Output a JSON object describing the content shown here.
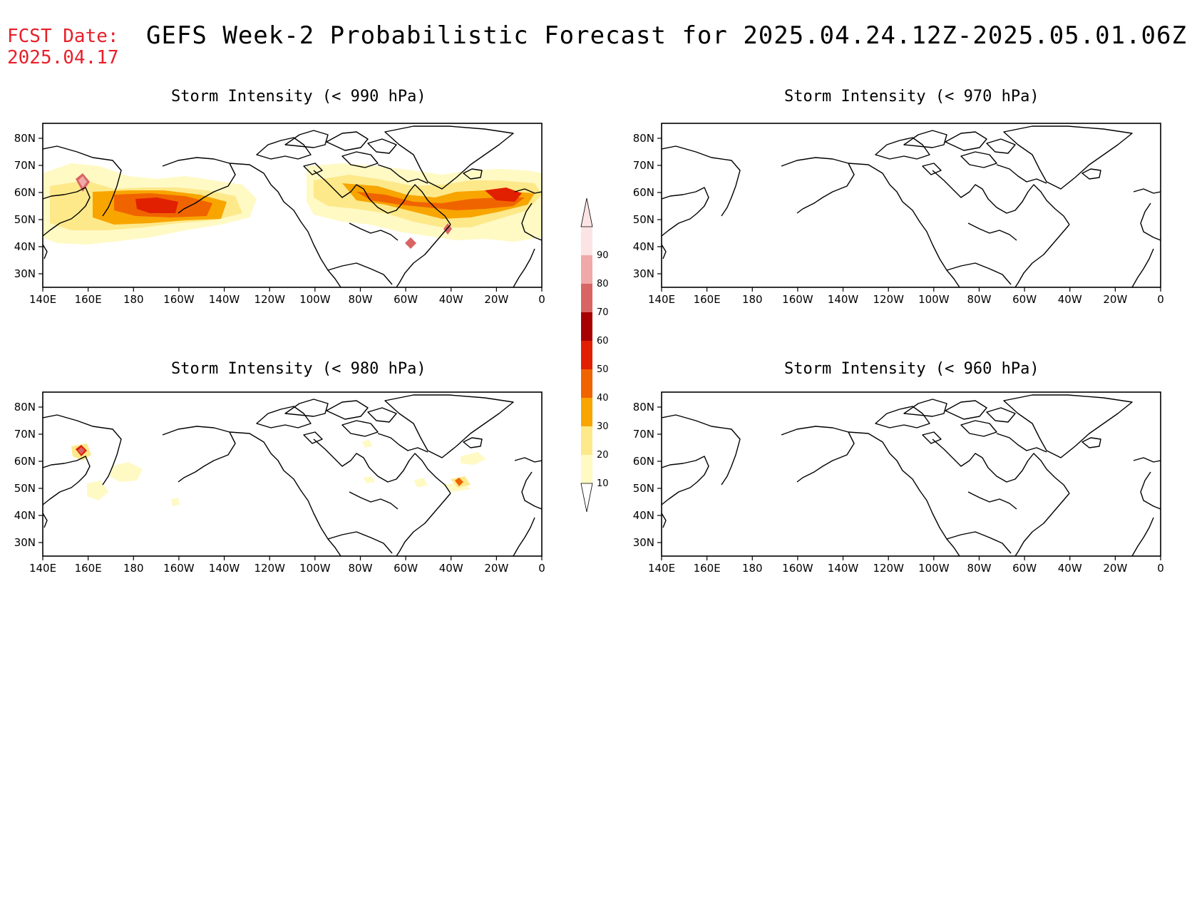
{
  "header": {
    "fcst_label": "FCST Date:",
    "fcst_date": "2025.04.17",
    "title": "GEFS Week-2 Probabilistic Forecast for 2025.04.24.12Z-2025.05.01.06Z"
  },
  "colors": {
    "fcst_text": "#e8202a",
    "scale": [
      "#fff9c4",
      "#fde98a",
      "#f8a500",
      "#f06400",
      "#e02000",
      "#a80000",
      "#d86464",
      "#f0a8a8",
      "#fde4e4"
    ]
  },
  "axes": {
    "lat_labels": [
      "80N",
      "70N",
      "60N",
      "50N",
      "40N",
      "30N"
    ],
    "lon_labels": [
      "140E",
      "160E",
      "180",
      "160W",
      "140W",
      "120W",
      "100W",
      "80W",
      "60W",
      "40W",
      "20W",
      "0"
    ]
  },
  "colorbar": {
    "labels": [
      "10",
      "20",
      "30",
      "40",
      "50",
      "60",
      "70",
      "80",
      "90"
    ]
  },
  "panels": [
    {
      "id": "p990",
      "title": "Storm Intensity (< 990 hPa)"
    },
    {
      "id": "p970",
      "title": "Storm Intensity (< 970 hPa)"
    },
    {
      "id": "p980",
      "title": "Storm Intensity (< 980 hPa)"
    },
    {
      "id": "p960",
      "title": "Storm Intensity (< 960 hPa)"
    }
  ]
}
